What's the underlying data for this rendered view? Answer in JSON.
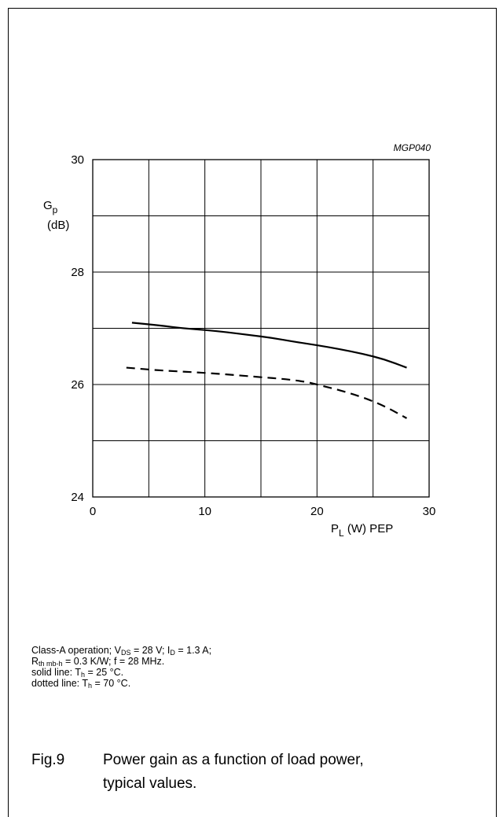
{
  "figure_code": "MGP040",
  "axes": {
    "y_symbol": "G",
    "y_sub": "p",
    "y_unit": "(dB)",
    "x_symbol": "P",
    "x_sub": "L",
    "x_unit": " (W) PEP"
  },
  "notes": {
    "line1_a": "Class-A operation; V",
    "line1_a_sub": "DS",
    "line1_b": " = 28 V; I",
    "line1_b_sub": "D",
    "line1_c": " = 1.3 A;",
    "line2_a": "R",
    "line2_a_sub": "th mb-h",
    "line2_b": " = 0.3 K/W; f = 28 MHz.",
    "line3_a": "solid line: T",
    "line3_a_sub": "h",
    "line3_b": " = 25 °C.",
    "line4_a": "dotted line: T",
    "line4_a_sub": "h",
    "line4_b": " = 70 °C."
  },
  "caption": {
    "label": "Fig.9",
    "line1": "Power gain as a function of load power,",
    "line2": "typical values."
  },
  "chart_data": {
    "type": "line",
    "xlim": [
      0,
      30
    ],
    "ylim": [
      24,
      30
    ],
    "x_ticks": [
      0,
      10,
      20,
      30
    ],
    "y_ticks": [
      24,
      26,
      28,
      30
    ],
    "x_grid_step": 5,
    "y_grid_step": 1,
    "grid": true,
    "series": [
      {
        "style": "solid",
        "x": [
          3.5,
          6,
          8,
          10,
          12,
          14,
          16,
          18,
          20,
          22,
          24,
          26,
          28
        ],
        "y": [
          27.1,
          27.05,
          27.0,
          26.97,
          26.93,
          26.88,
          26.83,
          26.76,
          26.7,
          26.63,
          26.55,
          26.45,
          26.3
        ]
      },
      {
        "style": "dashed",
        "x": [
          3,
          6,
          9,
          12,
          15,
          17,
          19,
          20,
          21,
          22,
          24,
          26,
          28
        ],
        "y": [
          26.3,
          26.25,
          26.22,
          26.18,
          26.13,
          26.1,
          26.05,
          26.0,
          25.95,
          25.9,
          25.78,
          25.62,
          25.4
        ]
      }
    ]
  }
}
